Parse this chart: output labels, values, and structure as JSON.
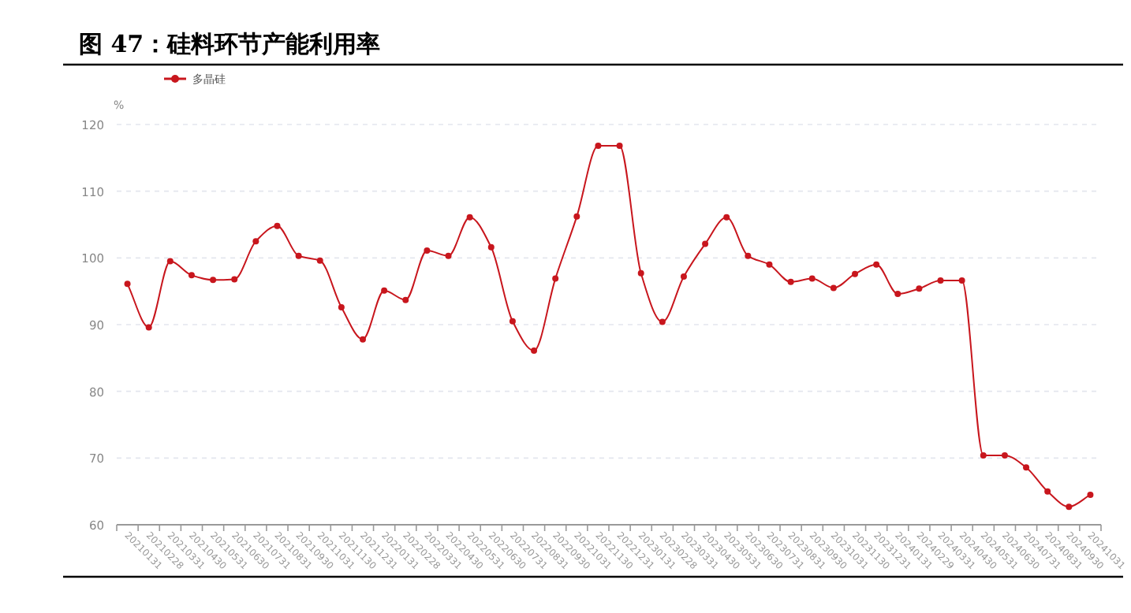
{
  "chart_data": {
    "type": "line",
    "title": "图 47：硅料环节产能利用率",
    "ylabel": "%",
    "categories": [
      "20210131",
      "20210228",
      "20210331",
      "20210430",
      "20210531",
      "20210630",
      "20210731",
      "20210831",
      "20210930",
      "20211031",
      "20211130",
      "20211231",
      "20220131",
      "20220228",
      "20220331",
      "20220430",
      "20220531",
      "20220630",
      "20220731",
      "20220831",
      "20220930",
      "20221031",
      "20221130",
      "20221231",
      "20230131",
      "20230228",
      "20230331",
      "20230430",
      "20230531",
      "20230630",
      "20230731",
      "20230831",
      "20230930",
      "20231031",
      "20231130",
      "20231231",
      "20240131",
      "20240229",
      "20240331",
      "20240430",
      "20240531",
      "20240630",
      "20240731",
      "20240831",
      "20240930",
      "20241031"
    ],
    "series": [
      {
        "name": "多晶硅",
        "color": "#c8161d",
        "values": [
          96.1,
          89.6,
          99.5,
          97.4,
          96.7,
          96.8,
          102.5,
          104.8,
          100.3,
          99.6,
          92.6,
          87.8,
          95.1,
          93.7,
          101.1,
          100.3,
          106.1,
          101.6,
          90.5,
          86.1,
          96.9,
          106.2,
          116.8,
          116.8,
          97.7,
          90.4,
          97.2,
          102.1,
          106.1,
          100.3,
          99.0,
          96.4,
          96.9,
          95.5,
          97.6,
          99.0,
          94.6,
          95.4,
          96.6,
          96.6,
          70.4,
          70.4,
          68.6,
          65.0,
          62.7,
          64.5
        ]
      }
    ],
    "ylim": [
      60,
      120
    ],
    "yticks": [
      60,
      70,
      80,
      90,
      100,
      110,
      120
    ],
    "grid": "y",
    "legend": "top left",
    "marker": "circle",
    "line_style": "solid"
  }
}
